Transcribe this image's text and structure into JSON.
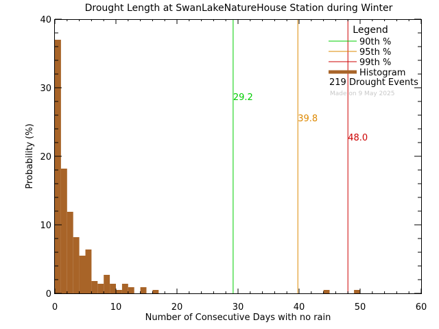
{
  "chart_data": {
    "type": "bar",
    "title": "Drought Length at SwanLakeNatureHouse Station during Winter",
    "xlabel": "Number of Consecutive Days with no rain",
    "ylabel": "Probability (%)",
    "xlim": [
      0,
      60
    ],
    "ylim": [
      0,
      40
    ],
    "x_ticks": [
      0,
      10,
      20,
      30,
      40,
      50,
      60
    ],
    "y_ticks": [
      0,
      10,
      20,
      30,
      40
    ],
    "bin_width": 1,
    "histogram": {
      "name": "Histogram",
      "color": "#a86428",
      "bins": [
        {
          "x": 0,
          "value": 37.0
        },
        {
          "x": 1,
          "value": 18.2
        },
        {
          "x": 2,
          "value": 11.9
        },
        {
          "x": 3,
          "value": 8.2
        },
        {
          "x": 4,
          "value": 5.5
        },
        {
          "x": 5,
          "value": 6.4
        },
        {
          "x": 6,
          "value": 1.8
        },
        {
          "x": 7,
          "value": 1.4
        },
        {
          "x": 8,
          "value": 2.7
        },
        {
          "x": 9,
          "value": 1.4
        },
        {
          "x": 10,
          "value": 0.5
        },
        {
          "x": 11,
          "value": 1.4
        },
        {
          "x": 12,
          "value": 0.9
        },
        {
          "x": 14,
          "value": 0.9
        },
        {
          "x": 16,
          "value": 0.5
        },
        {
          "x": 44,
          "value": 0.5
        },
        {
          "x": 49,
          "value": 0.5
        }
      ]
    },
    "percentiles": [
      {
        "name": "90th %",
        "value": 29.2,
        "label": "29.2",
        "color": "#00cc00"
      },
      {
        "name": "95th %",
        "value": 39.8,
        "label": "39.8",
        "color": "#dd8800"
      },
      {
        "name": "99th %",
        "value": 48.0,
        "label": "48.0",
        "color": "#cc0000"
      }
    ],
    "legend": {
      "title": "Legend",
      "position": "top-right",
      "events_text": "219 Drought Events",
      "made_on": "Made on 9 May 2025"
    }
  }
}
